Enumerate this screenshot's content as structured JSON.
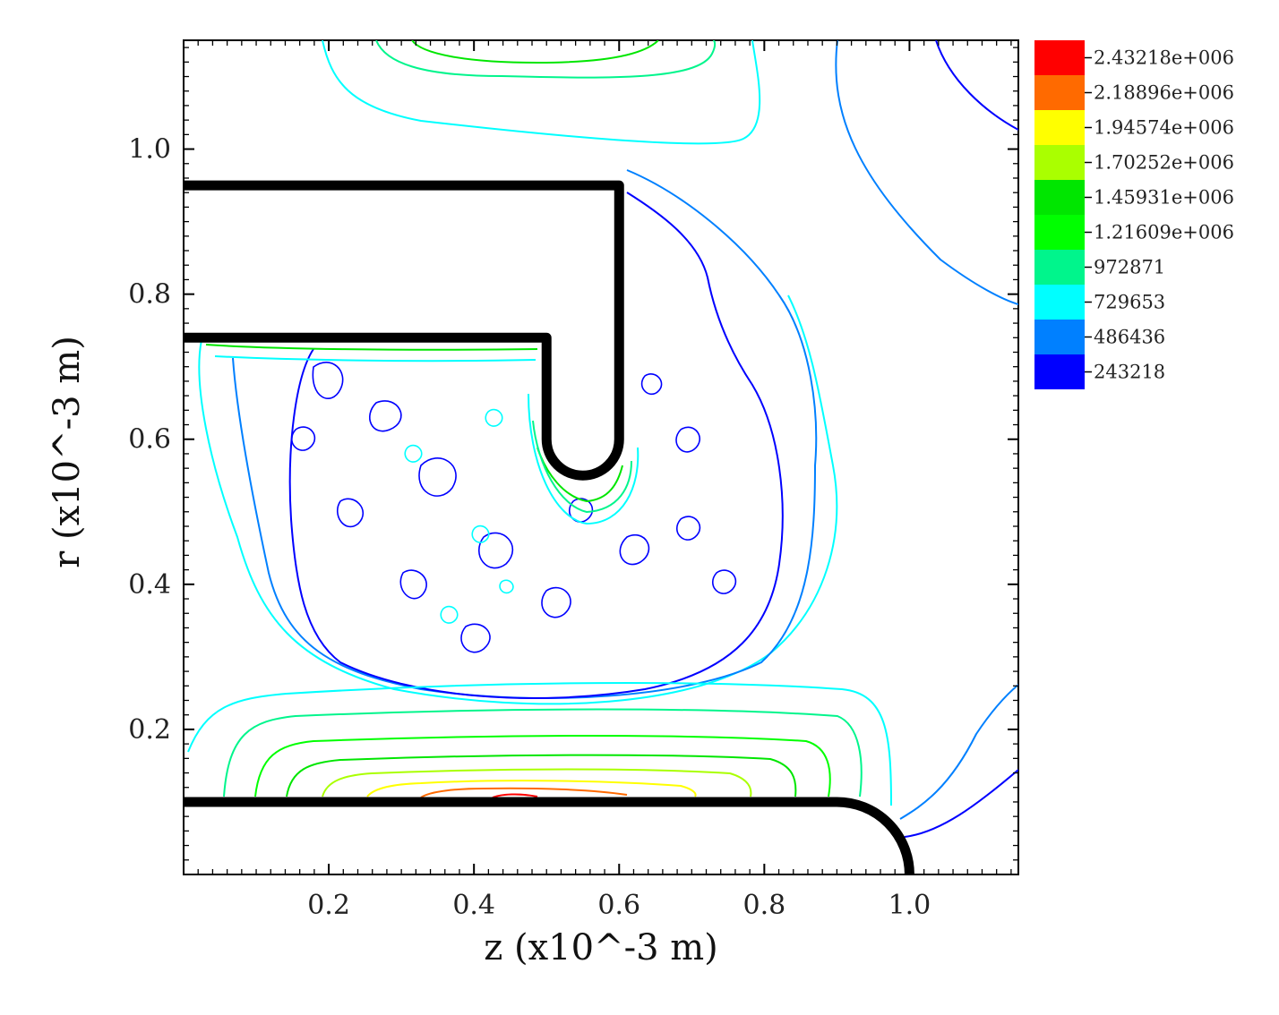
{
  "chart_data": {
    "type": "contour",
    "title": "",
    "xlabel": "z (x10^-3 m)",
    "ylabel": "r (x10^-3 m)",
    "xlim": [
      0,
      1.15
    ],
    "ylim": [
      0,
      1.15
    ],
    "x_ticks": [
      {
        "value": 0.2,
        "label": "0.2"
      },
      {
        "value": 0.4,
        "label": "0.4"
      },
      {
        "value": 0.6,
        "label": "0.6"
      },
      {
        "value": 0.8,
        "label": "0.8"
      },
      {
        "value": 1.0,
        "label": "1.0"
      }
    ],
    "y_ticks": [
      {
        "value": 0.2,
        "label": "0.2"
      },
      {
        "value": 0.4,
        "label": "0.4"
      },
      {
        "value": 0.6,
        "label": "0.6"
      },
      {
        "value": 0.8,
        "label": "0.8"
      },
      {
        "value": 1.0,
        "label": "1.0"
      }
    ],
    "grid": false,
    "legend_position": "right",
    "colorbar": [
      {
        "label": "2.43218e+006",
        "value": 2432180,
        "color": "#ff0000"
      },
      {
        "label": "2.18896e+006",
        "value": 2188960,
        "color": "#ff6a00"
      },
      {
        "label": "1.94574e+006",
        "value": 1945740,
        "color": "#ffff00"
      },
      {
        "label": "1.70252e+006",
        "value": 1702520,
        "color": "#aaff00"
      },
      {
        "label": "1.45931e+006",
        "value": 1459310,
        "color": "#00e600"
      },
      {
        "label": "1.21609e+006",
        "value": 1216090,
        "color": "#00ff00"
      },
      {
        "label": "972871",
        "value": 972871,
        "color": "#00f58c"
      },
      {
        "label": "729653",
        "value": 729653,
        "color": "#00ffff"
      },
      {
        "label": "486436",
        "value": 486436,
        "color": "#0080ff"
      },
      {
        "label": "243218",
        "value": 243218,
        "color": "#0000ff"
      }
    ],
    "geometry": {
      "upper_electrode": [
        [
          0,
          0.95
        ],
        [
          0.6,
          0.95
        ],
        [
          0.6,
          0.6
        ],
        [
          0.5,
          0.6
        ],
        [
          0.5,
          0.74
        ],
        [
          0,
          0.74
        ]
      ],
      "lower_electrode": [
        [
          0,
          0.1
        ],
        [
          0.9,
          0.1
        ],
        [
          1.0,
          0.0
        ]
      ]
    }
  }
}
